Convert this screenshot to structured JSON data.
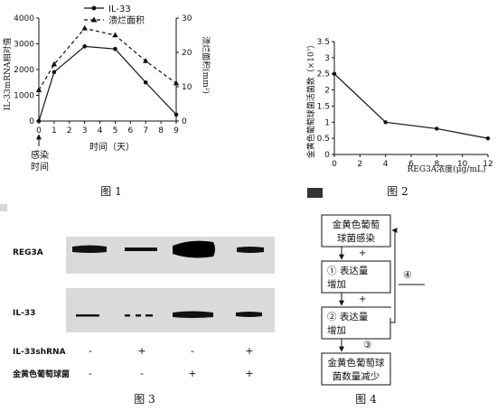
{
  "chart_data": [
    {
      "type": "line",
      "caption": "图 1",
      "xlabel": "时间（天）",
      "ylabel_left": "IL-33mRNA相对值",
      "ylabel_right": "溃烂面积(mm²)",
      "x_ticks": [
        0,
        1,
        2,
        3,
        4,
        5,
        6,
        7,
        8,
        9
      ],
      "y_left_ticks": [
        0,
        1000,
        2000,
        3000,
        4000
      ],
      "y_right_ticks": [
        0,
        10,
        20,
        30
      ],
      "xlim": [
        0,
        9
      ],
      "ylim_left": [
        0,
        4000
      ],
      "ylim_right": [
        0,
        30
      ],
      "annotation": [
        "感染",
        "时间"
      ],
      "legend": [
        "IL-33",
        "溃烂面积"
      ],
      "series": [
        {
          "name": "IL-33",
          "axis": "left",
          "marker": "circle",
          "style": "solid",
          "x": [
            0,
            1,
            3,
            5,
            7,
            9
          ],
          "y": [
            0,
            1900,
            2900,
            2800,
            1500,
            250
          ]
        },
        {
          "name": "溃烂面积",
          "axis": "right",
          "marker": "triangle",
          "style": "dashed",
          "x": [
            0,
            1,
            3,
            5,
            7,
            9
          ],
          "y": [
            9,
            16.5,
            27,
            25,
            17.5,
            11
          ]
        }
      ]
    },
    {
      "type": "line",
      "caption": "图 2",
      "xlabel": "REG3A浓度(μg/mL)",
      "ylabel": "金黄色葡萄球菌活菌数（×10⁷）",
      "x_ticks": [
        0,
        2,
        4,
        6,
        8,
        10,
        12
      ],
      "y_ticks": [
        0,
        0.5,
        1,
        1.5,
        2,
        2.5,
        3,
        3.5
      ],
      "xlim": [
        0,
        12
      ],
      "ylim": [
        0,
        3.5
      ],
      "series": [
        {
          "x": [
            0,
            4,
            8,
            12
          ],
          "y": [
            2.5,
            1.0,
            0.8,
            0.5
          ]
        }
      ]
    }
  ],
  "figure3": {
    "caption": "图 3",
    "bands": [
      "REG3A",
      "IL-33"
    ],
    "rows": [
      {
        "label": "IL-33shRNA",
        "values": [
          "-",
          "+",
          "-",
          "+"
        ]
      },
      {
        "label": "金黄色葡萄球菌",
        "values": [
          "-",
          "-",
          "+",
          "+"
        ]
      }
    ]
  },
  "figure4": {
    "caption": "图 4",
    "box1": [
      "金黄色葡萄",
      "球菌感染"
    ],
    "box2": [
      "①  表达量",
      "增加"
    ],
    "box3": [
      "②  表达量",
      "增加"
    ],
    "box4": [
      "金黄色葡萄球",
      "菌数量减少"
    ],
    "plus": "+",
    "feedback_label": "④",
    "step3_label": "③"
  }
}
